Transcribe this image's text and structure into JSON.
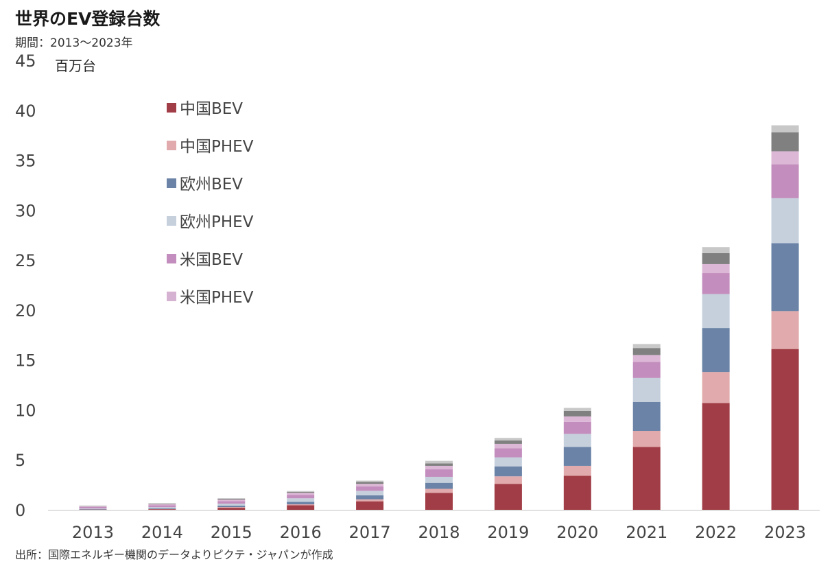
{
  "title": "世界のEV登録台数",
  "subtitle": "期間：2013～2023年",
  "source": "出所：国際エネルギー機関のデータよりピクテ・ジャパンが作成",
  "chart_data": {
    "type": "bar",
    "stacked": true,
    "ylabel": "百万台",
    "ylim": [
      0,
      45
    ],
    "yticks": [
      0,
      5,
      10,
      15,
      20,
      25,
      30,
      35,
      40,
      45
    ],
    "grid": false,
    "legend_position": "top-left",
    "categories": [
      "2013",
      "2014",
      "2015",
      "2016",
      "2017",
      "2018",
      "2019",
      "2020",
      "2021",
      "2022",
      "2023"
    ],
    "series": [
      {
        "name": "中国BEV",
        "color": "#a13d46",
        "legend": true,
        "values": [
          0.02,
          0.06,
          0.2,
          0.45,
          0.85,
          1.7,
          2.6,
          3.4,
          6.3,
          10.7,
          16.1
        ]
      },
      {
        "name": "中国PHEV",
        "color": "#e1aaac",
        "legend": true,
        "values": [
          0.01,
          0.02,
          0.07,
          0.1,
          0.2,
          0.4,
          0.75,
          1.0,
          1.6,
          3.1,
          3.8
        ]
      },
      {
        "name": "欧州BEV",
        "color": "#6a83a6",
        "legend": true,
        "values": [
          0.05,
          0.08,
          0.15,
          0.25,
          0.4,
          0.6,
          1.0,
          1.9,
          2.9,
          4.4,
          6.8
        ]
      },
      {
        "name": "欧州PHEV",
        "color": "#c6d0dd",
        "legend": true,
        "values": [
          0.05,
          0.1,
          0.2,
          0.35,
          0.45,
          0.6,
          0.9,
          1.3,
          2.4,
          3.4,
          4.5
        ]
      },
      {
        "name": "米国BEV",
        "color": "#c38ebd",
        "legend": true,
        "values": [
          0.15,
          0.2,
          0.25,
          0.35,
          0.45,
          0.75,
          0.9,
          1.2,
          1.6,
          2.1,
          3.4
        ]
      },
      {
        "name": "",
        "color": "#dcb7d6",
        "legend": false,
        "values": [
          0.08,
          0.1,
          0.15,
          0.2,
          0.25,
          0.35,
          0.45,
          0.55,
          0.7,
          0.9,
          1.3
        ]
      },
      {
        "name": "米国PHEV",
        "color": "#d6b2d2",
        "legend": true,
        "values": [
          0.0,
          0.0,
          0.0,
          0.0,
          0.0,
          0.0,
          0.0,
          0.0,
          0.0,
          0.0,
          0.0
        ]
      },
      {
        "name": "",
        "color": "#808080",
        "legend": false,
        "values": [
          0.04,
          0.06,
          0.08,
          0.1,
          0.2,
          0.25,
          0.35,
          0.55,
          0.7,
          1.1,
          1.9
        ]
      },
      {
        "name": "",
        "color": "#c8c8c8",
        "legend": false,
        "values": [
          0.02,
          0.03,
          0.06,
          0.08,
          0.12,
          0.25,
          0.25,
          0.3,
          0.4,
          0.6,
          0.7
        ]
      }
    ]
  }
}
